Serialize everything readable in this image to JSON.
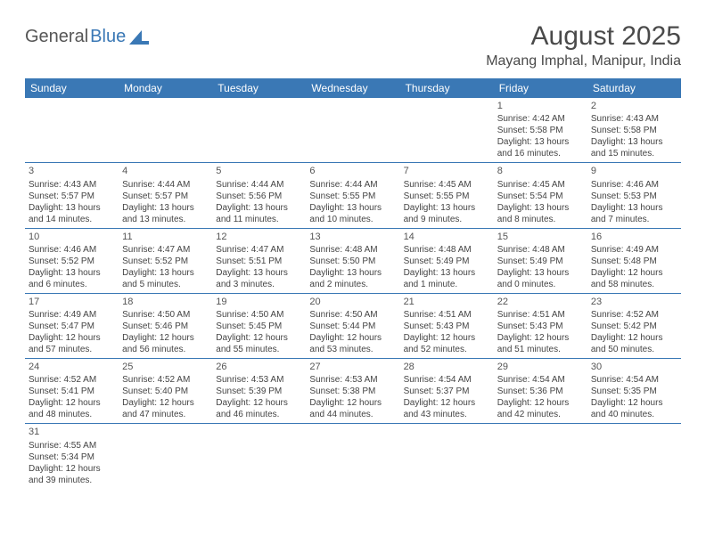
{
  "logo": {
    "part1": "General",
    "part2": "Blue"
  },
  "title": "August 2025",
  "location": "Mayang Imphal, Manipur, India",
  "colors": {
    "header_bg": "#3a78b5",
    "header_text": "#ffffff",
    "border": "#3a78b5",
    "body_text": "#444444",
    "title_text": "#4a4a4a",
    "accent": "#3a78b5"
  },
  "typography": {
    "title_fontsize": 30,
    "location_fontsize": 16,
    "dayhead_fontsize": 12,
    "cell_fontsize": 10
  },
  "day_names": [
    "Sunday",
    "Monday",
    "Tuesday",
    "Wednesday",
    "Thursday",
    "Friday",
    "Saturday"
  ],
  "weeks": [
    [
      null,
      null,
      null,
      null,
      null,
      {
        "n": "1",
        "sr": "4:42 AM",
        "ss": "5:58 PM",
        "dl": "13 hours and 16 minutes."
      },
      {
        "n": "2",
        "sr": "4:43 AM",
        "ss": "5:58 PM",
        "dl": "13 hours and 15 minutes."
      }
    ],
    [
      {
        "n": "3",
        "sr": "4:43 AM",
        "ss": "5:57 PM",
        "dl": "13 hours and 14 minutes."
      },
      {
        "n": "4",
        "sr": "4:44 AM",
        "ss": "5:57 PM",
        "dl": "13 hours and 13 minutes."
      },
      {
        "n": "5",
        "sr": "4:44 AM",
        "ss": "5:56 PM",
        "dl": "13 hours and 11 minutes."
      },
      {
        "n": "6",
        "sr": "4:44 AM",
        "ss": "5:55 PM",
        "dl": "13 hours and 10 minutes."
      },
      {
        "n": "7",
        "sr": "4:45 AM",
        "ss": "5:55 PM",
        "dl": "13 hours and 9 minutes."
      },
      {
        "n": "8",
        "sr": "4:45 AM",
        "ss": "5:54 PM",
        "dl": "13 hours and 8 minutes."
      },
      {
        "n": "9",
        "sr": "4:46 AM",
        "ss": "5:53 PM",
        "dl": "13 hours and 7 minutes."
      }
    ],
    [
      {
        "n": "10",
        "sr": "4:46 AM",
        "ss": "5:52 PM",
        "dl": "13 hours and 6 minutes."
      },
      {
        "n": "11",
        "sr": "4:47 AM",
        "ss": "5:52 PM",
        "dl": "13 hours and 5 minutes."
      },
      {
        "n": "12",
        "sr": "4:47 AM",
        "ss": "5:51 PM",
        "dl": "13 hours and 3 minutes."
      },
      {
        "n": "13",
        "sr": "4:48 AM",
        "ss": "5:50 PM",
        "dl": "13 hours and 2 minutes."
      },
      {
        "n": "14",
        "sr": "4:48 AM",
        "ss": "5:49 PM",
        "dl": "13 hours and 1 minute."
      },
      {
        "n": "15",
        "sr": "4:48 AM",
        "ss": "5:49 PM",
        "dl": "13 hours and 0 minutes."
      },
      {
        "n": "16",
        "sr": "4:49 AM",
        "ss": "5:48 PM",
        "dl": "12 hours and 58 minutes."
      }
    ],
    [
      {
        "n": "17",
        "sr": "4:49 AM",
        "ss": "5:47 PM",
        "dl": "12 hours and 57 minutes."
      },
      {
        "n": "18",
        "sr": "4:50 AM",
        "ss": "5:46 PM",
        "dl": "12 hours and 56 minutes."
      },
      {
        "n": "19",
        "sr": "4:50 AM",
        "ss": "5:45 PM",
        "dl": "12 hours and 55 minutes."
      },
      {
        "n": "20",
        "sr": "4:50 AM",
        "ss": "5:44 PM",
        "dl": "12 hours and 53 minutes."
      },
      {
        "n": "21",
        "sr": "4:51 AM",
        "ss": "5:43 PM",
        "dl": "12 hours and 52 minutes."
      },
      {
        "n": "22",
        "sr": "4:51 AM",
        "ss": "5:43 PM",
        "dl": "12 hours and 51 minutes."
      },
      {
        "n": "23",
        "sr": "4:52 AM",
        "ss": "5:42 PM",
        "dl": "12 hours and 50 minutes."
      }
    ],
    [
      {
        "n": "24",
        "sr": "4:52 AM",
        "ss": "5:41 PM",
        "dl": "12 hours and 48 minutes."
      },
      {
        "n": "25",
        "sr": "4:52 AM",
        "ss": "5:40 PM",
        "dl": "12 hours and 47 minutes."
      },
      {
        "n": "26",
        "sr": "4:53 AM",
        "ss": "5:39 PM",
        "dl": "12 hours and 46 minutes."
      },
      {
        "n": "27",
        "sr": "4:53 AM",
        "ss": "5:38 PM",
        "dl": "12 hours and 44 minutes."
      },
      {
        "n": "28",
        "sr": "4:54 AM",
        "ss": "5:37 PM",
        "dl": "12 hours and 43 minutes."
      },
      {
        "n": "29",
        "sr": "4:54 AM",
        "ss": "5:36 PM",
        "dl": "12 hours and 42 minutes."
      },
      {
        "n": "30",
        "sr": "4:54 AM",
        "ss": "5:35 PM",
        "dl": "12 hours and 40 minutes."
      }
    ],
    [
      {
        "n": "31",
        "sr": "4:55 AM",
        "ss": "5:34 PM",
        "dl": "12 hours and 39 minutes."
      },
      null,
      null,
      null,
      null,
      null,
      null
    ]
  ],
  "labels": {
    "sunrise": "Sunrise: ",
    "sunset": "Sunset: ",
    "daylight": "Daylight: "
  }
}
